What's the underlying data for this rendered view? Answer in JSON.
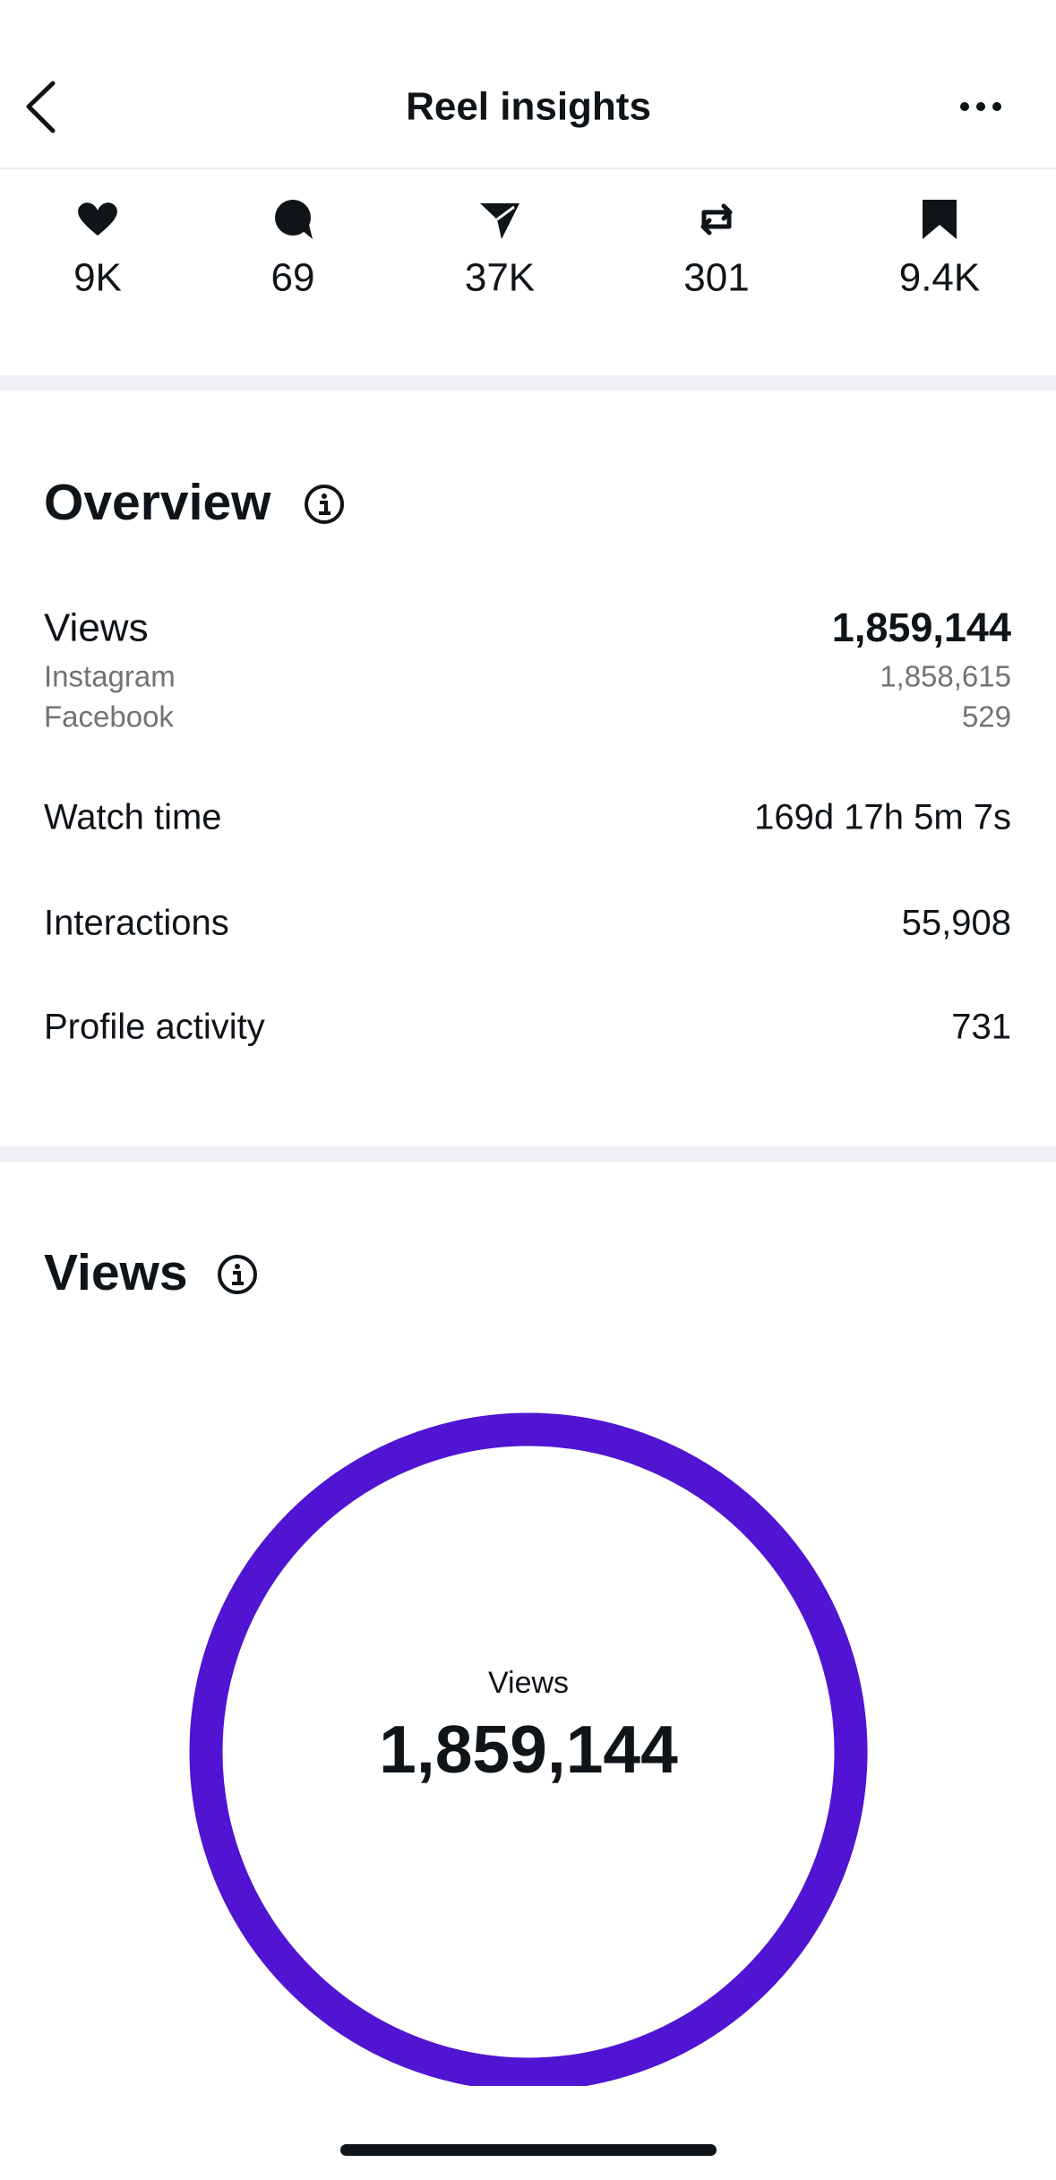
{
  "header": {
    "title": "Reel insights"
  },
  "engagement": {
    "values": [
      "9K",
      "69",
      "37K",
      "301",
      "9.4K"
    ]
  },
  "overview": {
    "title": "Overview",
    "rows": [
      {
        "label": "Views",
        "value": "1,859,144",
        "breakdown": [
          {
            "label": "Instagram",
            "value": "1,858,615"
          },
          {
            "label": "Facebook",
            "value": "529"
          }
        ]
      },
      {
        "label": "Watch time",
        "value": "169d 17h 5m 7s"
      },
      {
        "label": "Interactions",
        "value": "55,908"
      },
      {
        "label": "Profile activity",
        "value": "731"
      }
    ]
  },
  "views_section": {
    "title": "Views",
    "center_label": "Views",
    "center_value": "1,859,144"
  }
}
